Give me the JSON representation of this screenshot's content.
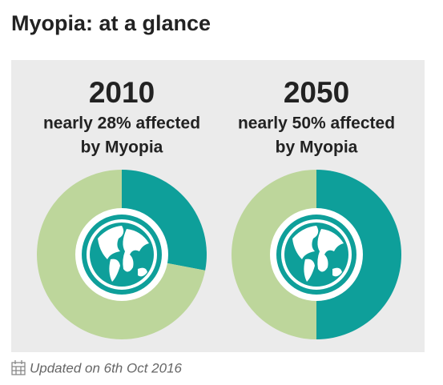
{
  "header": {
    "title": "Myopia: at a glance"
  },
  "chart_data": [
    {
      "type": "pie",
      "title": "2010",
      "subtitle": [
        "nearly 28% affected",
        "by Myopia"
      ],
      "values": [
        28,
        72
      ],
      "colors": [
        "#0e9f9a",
        "#bdd69b"
      ]
    },
    {
      "type": "pie",
      "title": "2050",
      "subtitle": [
        "nearly 50% affected",
        "by Myopia"
      ],
      "values": [
        50,
        50
      ],
      "colors": [
        "#0e9f9a",
        "#bdd69b"
      ]
    }
  ],
  "footer": {
    "text": "Updated on 6th Oct 2016"
  }
}
